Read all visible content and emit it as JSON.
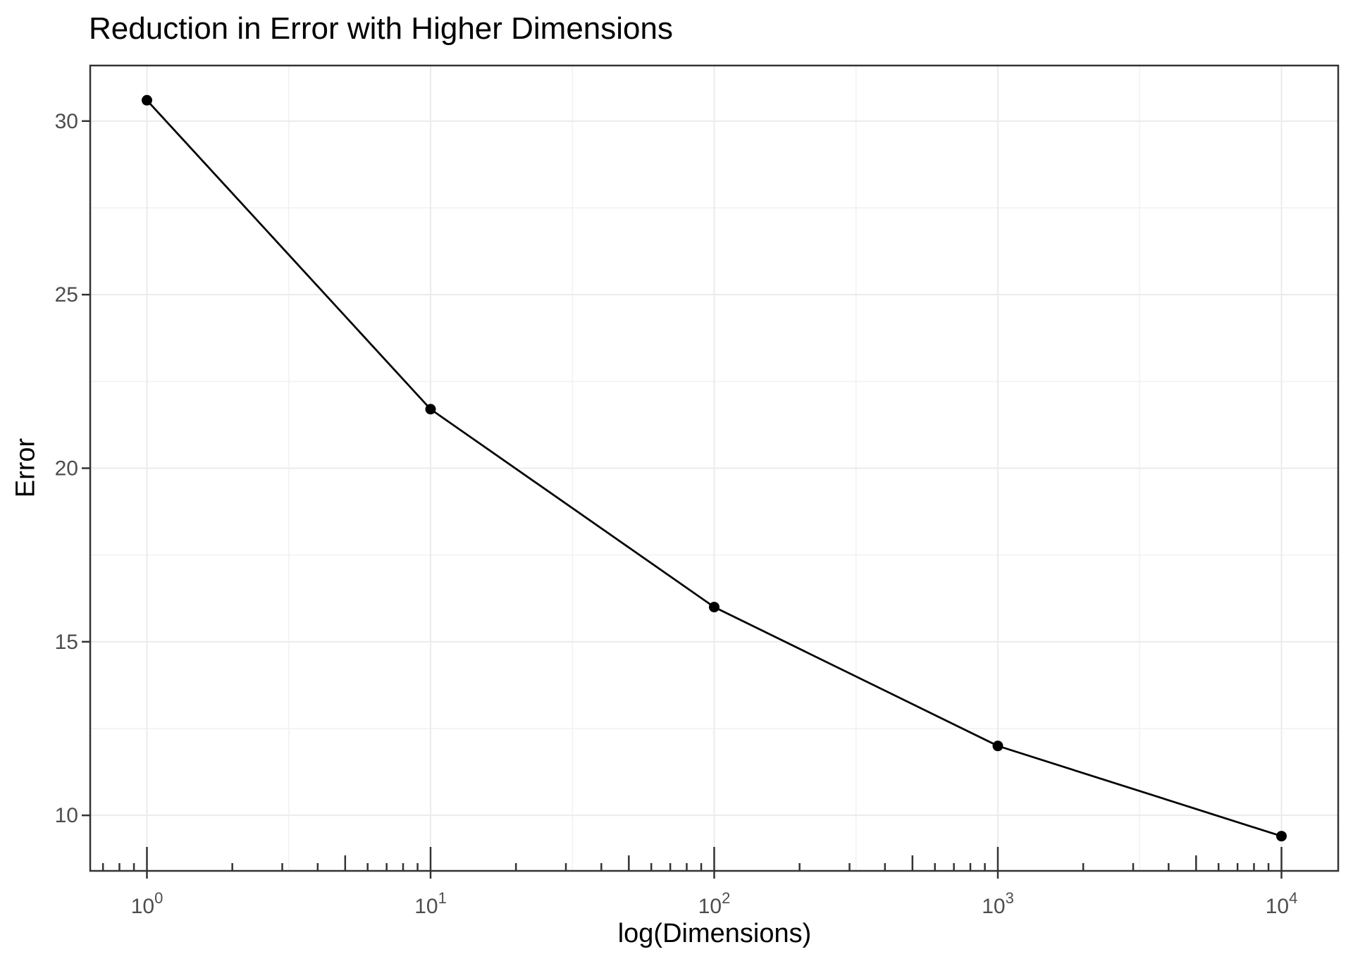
{
  "title": "Reduction in Error with Higher Dimensions",
  "axes": {
    "x_label": "log(Dimensions)",
    "y_label": "Error"
  },
  "chart_data": {
    "type": "line",
    "title": "Reduction in Error with Higher Dimensions",
    "xlabel": "log(Dimensions)",
    "ylabel": "Error",
    "series": [
      {
        "name": "Error",
        "x": [
          1,
          10,
          100,
          1000,
          10000
        ],
        "y": [
          30.6,
          21.7,
          16.0,
          12.0,
          9.4
        ]
      }
    ],
    "x_scale": "log10",
    "xlim_log10": [
      -0.2,
      4.2
    ],
    "ylim": [
      8.4,
      31.6
    ],
    "x_major_ticks": {
      "base": "10",
      "exponents": [
        0,
        1,
        2,
        3,
        4
      ]
    },
    "x_minor_ticks_log10": [
      0.5,
      1.5,
      2.5,
      3.5
    ],
    "y_major_ticks": [
      30,
      25,
      20,
      15,
      10
    ],
    "y_minor_ticks": [
      27.5,
      22.5,
      17.5,
      12.5
    ],
    "grid": "major+minor",
    "legend": "none",
    "log_tick_annotation": "bottom",
    "point_style": "filled-circle",
    "colors": {
      "line": "#000000",
      "point": "#000000",
      "grid_major": "#ebebeb",
      "grid_minor": "#f1f1f1",
      "axis_text": "#4d4d4d",
      "tick_mark": "#333333",
      "panel_border": "#333333",
      "background": "#ffffff"
    }
  }
}
